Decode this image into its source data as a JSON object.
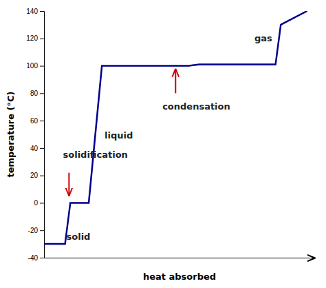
{
  "chart_data": {
    "type": "line",
    "xlabel": "heat absorbed",
    "ylabel": "temperature (°C)",
    "x": [
      0.0,
      0.8,
      1.0,
      1.7,
      2.2,
      5.5,
      5.9,
      8.8,
      9.0,
      10.0
    ],
    "values": [
      -30,
      -30,
      0,
      0,
      100,
      100,
      101,
      101,
      130,
      140
    ],
    "color": "#00008B",
    "xlim": [
      0,
      10.3
    ],
    "ylim": [
      -40,
      140
    ],
    "yticks": [
      -40,
      -20,
      0,
      20,
      40,
      60,
      80,
      100,
      120,
      140
    ],
    "tick_labels": "y",
    "grid": false,
    "annotations": [
      {
        "text": "solid",
        "x": 0.85,
        "y": -27
      },
      {
        "text": "solidification",
        "x": 0.72,
        "y": 33,
        "arrow": {
          "x": [
            0.95,
            0.95
          ],
          "y": [
            22,
            5
          ],
          "color": "#cc0000"
        }
      },
      {
        "text": "liquid",
        "x": 2.3,
        "y": 47
      },
      {
        "text": "condensation",
        "x": 4.5,
        "y": 68,
        "arrow": {
          "x": [
            5.0,
            5.0
          ],
          "y": [
            80,
            98
          ],
          "color": "#cc0000"
        }
      },
      {
        "text": "gas",
        "x": 8.0,
        "y": 118
      }
    ]
  }
}
